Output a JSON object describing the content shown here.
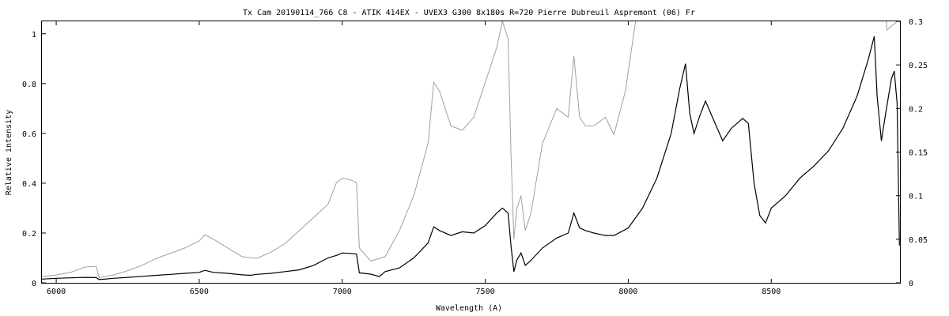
{
  "chart_data": {
    "type": "line",
    "title": "Tx Cam  20190114_766    C8 - ATIK 414EX - UVEX3 G300 8x180s  R=720  Pierre Dubreuil  Aspremont (06) Fr",
    "xlabel": "Wavelength (A)",
    "ylabel": "Relative intensity",
    "xlim": [
      5950,
      8950
    ],
    "ylim": [
      0,
      1.05
    ],
    "y2lim": [
      0,
      0.3
    ],
    "xticks": [
      "6000",
      "6500",
      "7000",
      "7500",
      "8000",
      "8500"
    ],
    "yticks": [
      "0",
      "0.2",
      "0.4",
      "0.6",
      "0.8",
      "1"
    ],
    "y2ticks": [
      "0",
      "0.05",
      "0.1",
      "0.15",
      "0.2",
      "0.25",
      "0.3"
    ],
    "grid": false,
    "legend": "none",
    "series": [
      {
        "axis": "left",
        "color": "#000000",
        "points": [
          [
            5950,
            0.015
          ],
          [
            6000,
            0.018
          ],
          [
            6050,
            0.02
          ],
          [
            6100,
            0.022
          ],
          [
            6140,
            0.021
          ],
          [
            6150,
            0.013
          ],
          [
            6200,
            0.018
          ],
          [
            6250,
            0.022
          ],
          [
            6300,
            0.026
          ],
          [
            6350,
            0.03
          ],
          [
            6400,
            0.034
          ],
          [
            6450,
            0.038
          ],
          [
            6500,
            0.042
          ],
          [
            6520,
            0.05
          ],
          [
            6550,
            0.042
          ],
          [
            6600,
            0.038
          ],
          [
            6650,
            0.032
          ],
          [
            6680,
            0.03
          ],
          [
            6700,
            0.034
          ],
          [
            6750,
            0.038
          ],
          [
            6800,
            0.045
          ],
          [
            6850,
            0.052
          ],
          [
            6900,
            0.07
          ],
          [
            6950,
            0.1
          ],
          [
            6980,
            0.11
          ],
          [
            7000,
            0.12
          ],
          [
            7030,
            0.118
          ],
          [
            7050,
            0.115
          ],
          [
            7060,
            0.04
          ],
          [
            7100,
            0.035
          ],
          [
            7130,
            0.025
          ],
          [
            7150,
            0.045
          ],
          [
            7200,
            0.06
          ],
          [
            7250,
            0.1
          ],
          [
            7300,
            0.16
          ],
          [
            7320,
            0.225
          ],
          [
            7340,
            0.21
          ],
          [
            7380,
            0.19
          ],
          [
            7420,
            0.205
          ],
          [
            7460,
            0.2
          ],
          [
            7500,
            0.23
          ],
          [
            7540,
            0.28
          ],
          [
            7560,
            0.3
          ],
          [
            7580,
            0.28
          ],
          [
            7590,
            0.15
          ],
          [
            7600,
            0.045
          ],
          [
            7610,
            0.09
          ],
          [
            7625,
            0.12
          ],
          [
            7640,
            0.07
          ],
          [
            7660,
            0.09
          ],
          [
            7700,
            0.14
          ],
          [
            7750,
            0.18
          ],
          [
            7790,
            0.2
          ],
          [
            7810,
            0.28
          ],
          [
            7830,
            0.22
          ],
          [
            7850,
            0.21
          ],
          [
            7880,
            0.2
          ],
          [
            7920,
            0.19
          ],
          [
            7950,
            0.19
          ],
          [
            8000,
            0.22
          ],
          [
            8050,
            0.3
          ],
          [
            8100,
            0.42
          ],
          [
            8150,
            0.6
          ],
          [
            8180,
            0.78
          ],
          [
            8200,
            0.88
          ],
          [
            8215,
            0.68
          ],
          [
            8230,
            0.6
          ],
          [
            8250,
            0.67
          ],
          [
            8270,
            0.73
          ],
          [
            8300,
            0.65
          ],
          [
            8330,
            0.57
          ],
          [
            8360,
            0.62
          ],
          [
            8400,
            0.66
          ],
          [
            8420,
            0.64
          ],
          [
            8440,
            0.4
          ],
          [
            8460,
            0.27
          ],
          [
            8480,
            0.24
          ],
          [
            8500,
            0.3
          ],
          [
            8550,
            0.35
          ],
          [
            8600,
            0.42
          ],
          [
            8650,
            0.47
          ],
          [
            8700,
            0.53
          ],
          [
            8750,
            0.62
          ],
          [
            8800,
            0.75
          ],
          [
            8840,
            0.9
          ],
          [
            8860,
            0.99
          ],
          [
            8870,
            0.75
          ],
          [
            8885,
            0.57
          ],
          [
            8900,
            0.68
          ],
          [
            8920,
            0.82
          ],
          [
            8930,
            0.85
          ],
          [
            8940,
            0.72
          ],
          [
            8948,
            0.15
          ]
        ]
      },
      {
        "axis": "right",
        "color": "#a0a0a0",
        "points": [
          [
            5950,
            0.007
          ],
          [
            6000,
            0.009
          ],
          [
            6050,
            0.012
          ],
          [
            6100,
            0.018
          ],
          [
            6140,
            0.019
          ],
          [
            6150,
            0.006
          ],
          [
            6200,
            0.009
          ],
          [
            6250,
            0.014
          ],
          [
            6300,
            0.02
          ],
          [
            6350,
            0.028
          ],
          [
            6400,
            0.034
          ],
          [
            6450,
            0.04
          ],
          [
            6500,
            0.048
          ],
          [
            6520,
            0.055
          ],
          [
            6550,
            0.05
          ],
          [
            6600,
            0.04
          ],
          [
            6650,
            0.03
          ],
          [
            6700,
            0.028
          ],
          [
            6750,
            0.035
          ],
          [
            6800,
            0.045
          ],
          [
            6850,
            0.06
          ],
          [
            6900,
            0.075
          ],
          [
            6950,
            0.09
          ],
          [
            6980,
            0.115
          ],
          [
            7000,
            0.12
          ],
          [
            7030,
            0.118
          ],
          [
            7050,
            0.115
          ],
          [
            7060,
            0.04
          ],
          [
            7100,
            0.025
          ],
          [
            7150,
            0.03
          ],
          [
            7200,
            0.06
          ],
          [
            7250,
            0.1
          ],
          [
            7300,
            0.16
          ],
          [
            7320,
            0.23
          ],
          [
            7340,
            0.22
          ],
          [
            7380,
            0.18
          ],
          [
            7420,
            0.175
          ],
          [
            7460,
            0.19
          ],
          [
            7500,
            0.23
          ],
          [
            7540,
            0.27
          ],
          [
            7560,
            0.3
          ],
          [
            7580,
            0.28
          ],
          [
            7590,
            0.15
          ],
          [
            7600,
            0.05
          ],
          [
            7610,
            0.085
          ],
          [
            7625,
            0.1
          ],
          [
            7640,
            0.06
          ],
          [
            7660,
            0.08
          ],
          [
            7700,
            0.16
          ],
          [
            7750,
            0.2
          ],
          [
            7790,
            0.19
          ],
          [
            7810,
            0.26
          ],
          [
            7830,
            0.19
          ],
          [
            7850,
            0.18
          ],
          [
            7880,
            0.18
          ],
          [
            7920,
            0.19
          ],
          [
            7950,
            0.17
          ],
          [
            7990,
            0.22
          ],
          [
            8030,
            0.31
          ],
          [
            8900,
            0.31
          ],
          [
            8905,
            0.29
          ],
          [
            8940,
            0.3
          ],
          [
            8948,
            0.3
          ]
        ]
      }
    ]
  }
}
